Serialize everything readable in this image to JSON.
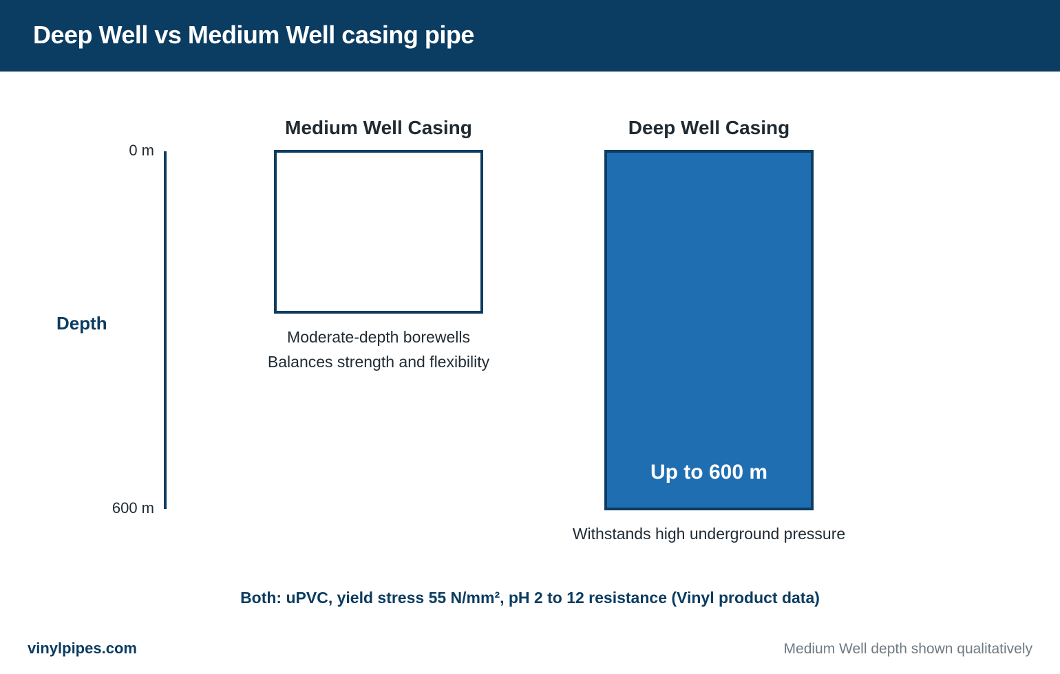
{
  "header": {
    "title": "Deep Well vs Medium Well casing pipe"
  },
  "axis": {
    "title": "Depth",
    "top_label": "0 m",
    "bottom_label": "600 m"
  },
  "medium": {
    "title": "Medium Well Casing",
    "desc_line1": "Moderate-depth borewells",
    "desc_line2": "Balances strength and flexibility"
  },
  "deep": {
    "title": "Deep Well Casing",
    "label": "Up to 600 m",
    "desc": "Withstands high underground pressure"
  },
  "footnote": "Both: uPVC, yield stress 55 N/mm², pH 2 to 12 resistance (Vinyl product data)",
  "brand": "vinylpipes.com",
  "note": "Medium Well depth shown qualitatively",
  "colors": {
    "header": "#0b3c61",
    "deep_fill": "#206eb2",
    "outline": "#0b3c61"
  }
}
